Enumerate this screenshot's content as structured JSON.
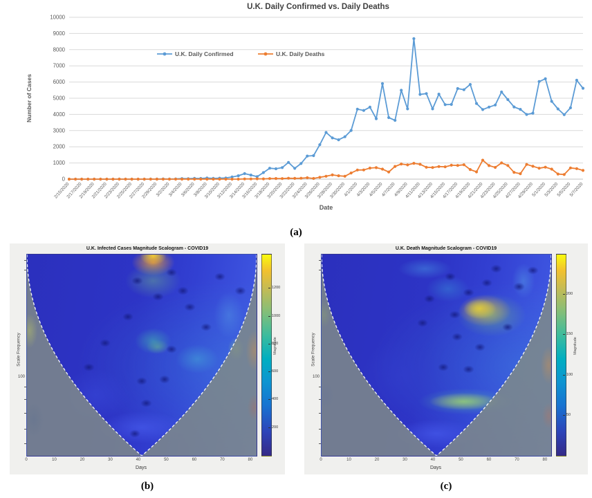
{
  "captions": {
    "a": "(a)",
    "b": "(b)",
    "c": "(c)"
  },
  "chart_data": [
    {
      "type": "line",
      "title": "U.K. Daily Confirmed vs. Daily Deaths",
      "xlabel": "Date",
      "ylabel": "Number of Cases",
      "ylim": [
        0,
        10000
      ],
      "y_ticks": [
        0,
        1000,
        2000,
        3000,
        4000,
        5000,
        6000,
        7000,
        8000,
        9000,
        10000
      ],
      "grid": "horizontal",
      "legend_position": "inside-top",
      "x": [
        "2/15/2020",
        "2/16/2020",
        "2/17/2020",
        "2/18/2020",
        "2/19/2020",
        "2/20/2020",
        "2/21/2020",
        "2/22/2020",
        "2/23/2020",
        "2/24/2020",
        "2/25/2020",
        "2/26/2020",
        "2/27/2020",
        "2/28/2020",
        "2/29/2020",
        "3/1/2020",
        "3/2/2020",
        "3/3/2020",
        "3/4/2020",
        "3/5/2020",
        "3/6/2020",
        "3/7/2020",
        "3/8/2020",
        "3/9/2020",
        "3/10/2020",
        "3/11/2020",
        "3/12/2020",
        "3/13/2020",
        "3/14/2020",
        "3/15/2020",
        "3/16/2020",
        "3/17/2020",
        "3/18/2020",
        "3/19/2020",
        "3/20/2020",
        "3/21/2020",
        "3/22/2020",
        "3/23/2020",
        "3/24/2020",
        "3/25/2020",
        "3/26/2020",
        "3/27/2020",
        "3/28/2020",
        "3/29/2020",
        "3/30/2020",
        "3/31/2020",
        "4/1/2020",
        "4/2/2020",
        "4/3/2020",
        "4/4/2020",
        "4/5/2020",
        "4/6/2020",
        "4/7/2020",
        "4/8/2020",
        "4/9/2020",
        "4/10/2020",
        "4/11/2020",
        "4/12/2020",
        "4/13/2020",
        "4/14/2020",
        "4/15/2020",
        "4/16/2020",
        "4/17/2020",
        "4/18/2020",
        "4/19/2020",
        "4/20/2020",
        "4/21/2020",
        "4/22/2020",
        "4/23/2020",
        "4/24/2020",
        "4/25/2020",
        "4/26/2020",
        "4/27/2020",
        "4/28/2020",
        "4/29/2020",
        "4/30/2020",
        "5/1/2020",
        "5/2/2020",
        "5/3/2020",
        "5/4/2020",
        "5/5/2020",
        "5/6/2020",
        "5/7/2020"
      ],
      "x_tick_every": 2,
      "series": [
        {
          "name": "U.K. Daily Confirmed",
          "color": "#5B9BD5",
          "values": [
            0,
            0,
            0,
            0,
            0,
            0,
            0,
            0,
            4,
            0,
            0,
            2,
            0,
            4,
            3,
            13,
            4,
            12,
            34,
            30,
            48,
            43,
            67,
            48,
            61,
            74,
            134,
            208,
            342,
            251,
            152,
            407,
            676,
            643,
            714,
            1035,
            665,
            967,
            1427,
            1452,
            2129,
            2885,
            2546,
            2433,
            2619,
            3009,
            4324,
            4244,
            4450,
            3735,
            5903,
            3802,
            3634,
            5491,
            4344,
            8681,
            5233,
            5288,
            4342,
            5252,
            4603,
            4617,
            5599,
            5525,
            5850,
            4676,
            4301,
            4451,
            4583,
            5386,
            4913,
            4463,
            4310,
            3996,
            4076,
            6032,
            6201,
            4806,
            4339,
            3985,
            4406,
            6111,
            5614
          ]
        },
        {
          "name": "U.K. Daily Deaths",
          "color": "#ED7D31",
          "values": [
            0,
            0,
            0,
            0,
            0,
            0,
            0,
            0,
            0,
            0,
            0,
            0,
            0,
            0,
            0,
            0,
            0,
            0,
            0,
            1,
            1,
            0,
            1,
            0,
            1,
            2,
            2,
            2,
            11,
            14,
            20,
            16,
            33,
            40,
            33,
            56,
            48,
            54,
            87,
            43,
            115,
            181,
            260,
            209,
            180,
            381,
            563,
            569,
            684,
            708,
            621,
            439,
            786,
            938,
            881,
            980,
            917,
            737,
            717,
            778,
            761,
            861,
            847,
            888,
            596,
            449,
            1172,
            837,
            727,
            1005,
            843,
            420,
            338,
            909,
            795,
            674,
            739,
            621,
            315,
            288,
            693,
            649,
            539
          ]
        }
      ]
    },
    {
      "type": "heatmap",
      "title": "U.K. Infected Cases Magnitude Scalogram - COVID19",
      "xlabel": "Days",
      "ylabel": "Scale Frequency",
      "x_ticks": [
        0,
        10,
        20,
        30,
        40,
        50,
        60,
        70,
        80
      ],
      "x_range": [
        0,
        82
      ],
      "y_tick": {
        "label": "100",
        "pos": 0.61
      },
      "y_minor_pos": [
        0.03,
        0.08,
        0.66,
        0.72,
        0.79,
        0.87,
        0.94
      ],
      "cone_vertex_day": 41,
      "colorbar": {
        "label": "Magnitude",
        "max": 1445,
        "ticks": [
          1200,
          1000,
          800,
          600,
          400,
          200
        ]
      },
      "hotspots": [
        [
          55,
          1,
          8,
          6,
          "rgba(250,235,40,0.95)"
        ],
        [
          55,
          4,
          13,
          9,
          "rgba(242,166,48,0.8)"
        ],
        [
          55,
          13,
          17,
          12,
          "rgba(120,200,130,0.4)"
        ],
        [
          55,
          43,
          11,
          9,
          "rgba(70,195,170,0.5)"
        ],
        [
          57,
          46,
          7,
          5,
          "rgba(120,210,120,0.4)"
        ],
        [
          74,
          52,
          13,
          10,
          "rgba(70,180,215,0.45)"
        ],
        [
          88,
          30,
          9,
          16,
          "rgba(90,170,230,0.35)"
        ],
        [
          91,
          47,
          5,
          8,
          "rgba(150,210,120,0.55)"
        ],
        [
          50,
          86,
          26,
          11,
          "rgba(70,90,235,0.7)"
        ],
        [
          30,
          70,
          20,
          18,
          "rgba(55,70,215,0.6)"
        ]
      ],
      "dark_spots": [
        [
          48,
          13
        ],
        [
          57,
          21
        ],
        [
          63,
          9
        ],
        [
          71,
          26
        ],
        [
          84,
          11
        ],
        [
          78,
          36
        ],
        [
          63,
          47
        ],
        [
          44,
          31
        ],
        [
          34,
          44
        ],
        [
          50,
          63
        ],
        [
          60,
          62
        ],
        [
          27,
          56
        ],
        [
          68,
          18
        ],
        [
          93,
          18
        ],
        [
          52,
          74
        ],
        [
          47,
          89
        ]
      ],
      "outside_tints": [
        [
          1,
          38,
          5,
          12,
          "rgba(200,210,90,0.4)"
        ],
        [
          99,
          48,
          5,
          14,
          "rgba(215,145,75,0.4)"
        ],
        [
          99,
          76,
          4,
          9,
          "rgba(190,100,80,0.3)"
        ],
        [
          3,
          82,
          6,
          12,
          "rgba(90,110,140,0.3)"
        ]
      ]
    },
    {
      "type": "heatmap",
      "title": "U.K. Death Magnitude Scalogram - COVID19",
      "xlabel": "Days",
      "ylabel": "Scale Frequency",
      "x_ticks": [
        0,
        10,
        20,
        30,
        40,
        50,
        60,
        70,
        80
      ],
      "x_range": [
        0,
        82
      ],
      "y_tick": {
        "label": "100",
        "pos": 0.61
      },
      "y_minor_pos": [
        0.03,
        0.08,
        0.66,
        0.72,
        0.79,
        0.87,
        0.94
      ],
      "cone_vertex_day": 41,
      "colorbar": {
        "label": "Magnitude",
        "max": 250,
        "ticks": [
          200,
          150,
          100,
          50
        ]
      },
      "hotspots": [
        [
          69,
          27,
          10,
          7,
          "rgba(252,244,30,1)"
        ],
        [
          71,
          28,
          16,
          11,
          "rgba(244,170,60,0.8)"
        ],
        [
          74,
          30,
          21,
          15,
          "rgba(130,205,110,0.45)"
        ],
        [
          62,
          73,
          21,
          6,
          "rgba(205,215,80,0.85)"
        ],
        [
          63,
          73,
          29,
          9,
          "rgba(90,190,160,0.5)"
        ],
        [
          45,
          7,
          16,
          7,
          "rgba(70,145,225,0.5)"
        ],
        [
          55,
          17,
          13,
          9,
          "rgba(60,170,220,0.35)"
        ],
        [
          88,
          13,
          7,
          12,
          "rgba(90,170,230,0.4)"
        ],
        [
          50,
          89,
          24,
          10,
          "rgba(70,90,235,0.7)"
        ],
        [
          35,
          60,
          25,
          25,
          "rgba(50,62,205,0.5)"
        ]
      ],
      "dark_spots": [
        [
          56,
          11
        ],
        [
          64,
          19
        ],
        [
          76,
          7
        ],
        [
          86,
          16
        ],
        [
          59,
          41
        ],
        [
          69,
          46
        ],
        [
          81,
          36
        ],
        [
          53,
          56
        ],
        [
          64,
          57
        ],
        [
          47,
          22
        ],
        [
          92,
          8
        ],
        [
          72,
          14
        ],
        [
          44,
          34
        ],
        [
          58,
          30
        ]
      ],
      "outside_tints": [
        [
          99,
          55,
          5,
          13,
          "rgba(215,145,75,0.4)"
        ],
        [
          99,
          80,
          4,
          9,
          "rgba(200,110,85,0.3)"
        ],
        [
          1,
          30,
          4,
          9,
          "rgba(150,175,105,0.3)"
        ],
        [
          2,
          70,
          5,
          10,
          "rgba(100,115,150,0.25)"
        ]
      ]
    }
  ]
}
